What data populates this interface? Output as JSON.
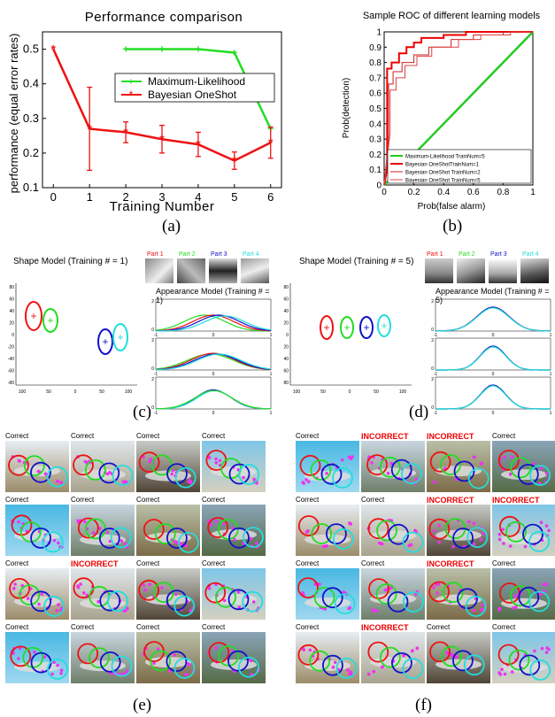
{
  "panel_a": {
    "title": "Performance comparison",
    "ylabel": "performance (equal error rates)",
    "xlabel": "Training Number",
    "label": "(a)"
  },
  "panel_b": {
    "title": "Sample ROC of different learning models",
    "ylabel": "Prob(detection)",
    "xlabel": "Prob(false alarm)",
    "label": "(b)"
  },
  "panel_c": {
    "shape_title": "Shape Model (Training # = 1)",
    "appearance_title": "Appearance Model (Training # = 1)",
    "parts": [
      "Part 1",
      "Part 2",
      "Part 3",
      "Part 4"
    ],
    "label": "(c)",
    "y_ticks": [
      "80",
      "60",
      "40",
      "20",
      "0",
      "-20",
      "-40",
      "-60",
      "-80"
    ],
    "x_ticks": [
      "100",
      "50",
      "0",
      "50",
      "100"
    ]
  },
  "panel_d": {
    "shape_title": "Shape Model (Training # = 5)",
    "appearance_title": "Appearance Model (Training # = 5)",
    "parts": [
      "Part 1",
      "Part 2",
      "Part 3",
      "Part 4"
    ],
    "label": "(d)",
    "y_ticks": [
      "80",
      "60",
      "40",
      "20",
      "0",
      "20",
      "40",
      "60",
      "80"
    ],
    "x_ticks": [
      "100",
      "50",
      "0",
      "50",
      "100"
    ]
  },
  "panel_e": {
    "label": "(e)",
    "captions": [
      "Correct",
      "Correct",
      "Correct",
      "Correct",
      "Correct",
      "Correct",
      "Correct",
      "Correct",
      "Correct",
      "INCORRECT",
      "Correct",
      "Correct",
      "Correct",
      "Correct",
      "Correct",
      "Correct"
    ]
  },
  "panel_f": {
    "label": "(f)",
    "captions": [
      "Correct",
      "INCORRECT",
      "INCORRECT",
      "Correct",
      "Correct",
      "Correct",
      "INCORRECT",
      "INCORRECT",
      "Correct",
      "Correct",
      "INCORRECT",
      "Correct",
      "Correct",
      "INCORRECT",
      "Correct",
      "Correct"
    ]
  },
  "colors": {
    "green": "#22dd22",
    "red": "#ee1111",
    "blue": "#1111cc",
    "cyan": "#22dddd",
    "magenta": "#ee33ee",
    "incorrect": "#ee0000"
  },
  "chart_data": [
    {
      "type": "line",
      "title": "Performance comparison",
      "xlabel": "Training Number",
      "ylabel": "performance (equal error rates)",
      "xlim": [
        -0.3,
        6.3
      ],
      "ylim": [
        0.1,
        0.55
      ],
      "x_ticks": [
        "0",
        "1",
        "2",
        "3",
        "4",
        "5",
        "6"
      ],
      "y_ticks": [
        "0.1",
        "0.2",
        "0.3",
        "0.4",
        "0.5"
      ],
      "legend_position": "center-right",
      "series": [
        {
          "name": "Maximum-Likelihood",
          "color": "#22dd22",
          "x": [
            2,
            3,
            4,
            5,
            6
          ],
          "y": [
            0.5,
            0.5,
            0.5,
            0.49,
            0.27
          ]
        },
        {
          "name": "Bayesian OneShot",
          "color": "#ee1111",
          "x": [
            0,
            1,
            2,
            3,
            4,
            5,
            6
          ],
          "y": [
            0.5,
            0.27,
            0.26,
            0.24,
            0.225,
            0.178,
            0.23
          ],
          "err": [
            0,
            0.12,
            0.03,
            0.04,
            0.035,
            0.025,
            0.045
          ]
        }
      ]
    },
    {
      "type": "line",
      "title": "Sample ROC of different learning models",
      "xlabel": "Prob(false alarm)",
      "ylabel": "Prob(detection)",
      "xlim": [
        0,
        1
      ],
      "ylim": [
        0,
        1
      ],
      "x_ticks": [
        "0",
        "0.2",
        "0.4",
        "0.6",
        "0.8",
        "1"
      ],
      "y_ticks": [
        "0",
        "0.1",
        "0.2",
        "0.3",
        "0.4",
        "0.5",
        "0.6",
        "0.7",
        "0.8",
        "0.9",
        "1"
      ],
      "legend_position": "bottom-right",
      "series": [
        {
          "name": "Maximum-Likelihood TrainNum=5",
          "color": "#22cc22",
          "x": [
            0,
            1
          ],
          "y": [
            0,
            1
          ]
        },
        {
          "name": "Bayesian OneShotTrainNum=1",
          "color": "#ee0000",
          "x": [
            0,
            0.02,
            0.02,
            0.05,
            0.05,
            0.1,
            0.1,
            0.15,
            0.15,
            0.2,
            0.2,
            0.25,
            0.25,
            0.4,
            0.4,
            0.55,
            0.55,
            0.7,
            0.7,
            1
          ],
          "y": [
            0,
            0.1,
            0.76,
            0.76,
            0.8,
            0.8,
            0.86,
            0.86,
            0.9,
            0.9,
            0.93,
            0.93,
            0.96,
            0.96,
            0.98,
            0.98,
            1,
            1,
            1,
            1
          ]
        },
        {
          "name": "Bayesian OneShot TrainNum=2",
          "color": "#cc2222",
          "x": [
            0,
            0.03,
            0.03,
            0.06,
            0.06,
            0.12,
            0.12,
            0.2,
            0.2,
            0.3,
            0.3,
            0.45,
            0.45,
            0.6,
            0.6,
            0.8,
            0.8,
            1
          ],
          "y": [
            0,
            0.3,
            0.66,
            0.66,
            0.74,
            0.74,
            0.8,
            0.8,
            0.85,
            0.85,
            0.9,
            0.9,
            0.95,
            0.95,
            0.98,
            0.98,
            1,
            1
          ]
        },
        {
          "name": "Bayesian OneShot TrainNum=5",
          "color": "#dd4444",
          "x": [
            0,
            0.04,
            0.04,
            0.08,
            0.08,
            0.14,
            0.14,
            0.22,
            0.22,
            0.32,
            0.32,
            0.5,
            0.5,
            0.65,
            0.65,
            0.85,
            0.85,
            1
          ],
          "y": [
            0,
            0.34,
            0.62,
            0.62,
            0.7,
            0.7,
            0.78,
            0.78,
            0.84,
            0.84,
            0.9,
            0.9,
            0.95,
            0.95,
            0.98,
            0.98,
            1,
            1
          ]
        }
      ]
    }
  ]
}
